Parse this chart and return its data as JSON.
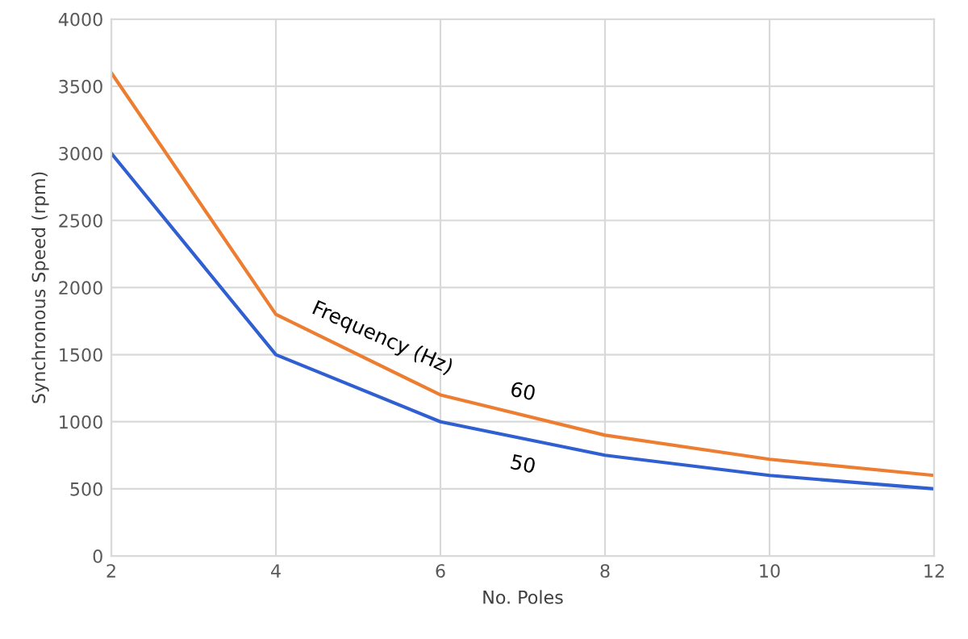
{
  "chart_data": {
    "type": "line",
    "xlabel": "No. Poles",
    "ylabel": "Synchronous Speed (rpm)",
    "x": [
      2,
      4,
      6,
      8,
      10,
      12
    ],
    "series": [
      {
        "name": "60",
        "color": "#ed7d31",
        "values": [
          3600,
          1800,
          1200,
          900,
          720,
          600
        ]
      },
      {
        "name": "50",
        "color": "#2f5fd0",
        "values": [
          3000,
          1500,
          1000,
          750,
          600,
          500
        ]
      }
    ],
    "annotations": [
      "Frequency (Hz)"
    ],
    "xlim": [
      2,
      12
    ],
    "xticks": [
      2,
      4,
      6,
      8,
      10,
      12
    ],
    "ylim": [
      0,
      4000
    ],
    "yticks": [
      0,
      500,
      1000,
      1500,
      2000,
      2500,
      3000,
      3500,
      4000
    ],
    "grid": true,
    "marker": "none",
    "line_style": "solid",
    "legend": false
  }
}
